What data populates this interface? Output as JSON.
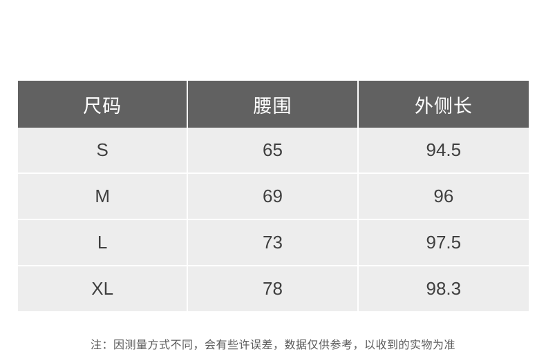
{
  "chart_data": {
    "type": "table",
    "columns": [
      "尺码",
      "腰围",
      "外侧长"
    ],
    "rows": [
      [
        "S",
        "65",
        "94.5"
      ],
      [
        "M",
        "69",
        "96"
      ],
      [
        "L",
        "73",
        "97.5"
      ],
      [
        "XL",
        "78",
        "98.3"
      ]
    ]
  },
  "note": "注：因测量方式不同，会有些许误差，数据仅供参考，以收到的实物为准",
  "colors": {
    "page_bg": "#ffffff",
    "header_bg": "#616161",
    "header_text": "#ffffff",
    "row_bg": "#ededed",
    "cell_text": "#3f3f3f",
    "divider": "#ffffff",
    "note_text": "#595959"
  }
}
